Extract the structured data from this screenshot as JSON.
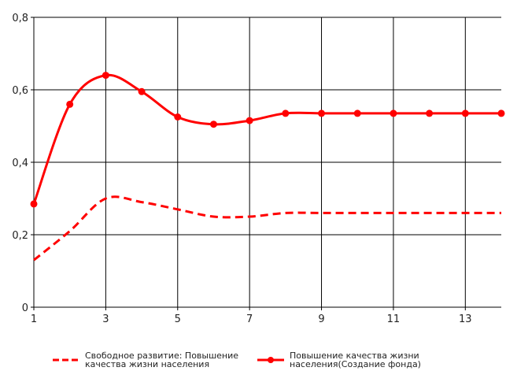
{
  "chart_data": {
    "type": "line",
    "x": [
      1,
      2,
      3,
      4,
      5,
      6,
      7,
      8,
      9,
      10,
      11,
      12,
      13,
      14
    ],
    "xticks": [
      1,
      3,
      5,
      7,
      9,
      11,
      13
    ],
    "yticks": [
      0,
      0.2,
      0.4,
      0.6,
      0.8
    ],
    "ytick_labels": [
      "0",
      "0,2",
      "0,4",
      "0,6",
      "0,8"
    ],
    "xlim": [
      1,
      14
    ],
    "ylim": [
      0,
      0.8
    ],
    "grid": true,
    "legend_position": "bottom",
    "series": [
      {
        "name": "Свободное развитие: Повышение качества жизни населения",
        "style": "dashed",
        "markers": false,
        "color": "#ff0000",
        "values": [
          0.13,
          0.21,
          0.3,
          0.29,
          0.27,
          0.25,
          0.25,
          0.26,
          0.26,
          0.26,
          0.26,
          0.26,
          0.26,
          0.26
        ]
      },
      {
        "name": "Повышение качества жизни населения(Создание фонда)",
        "style": "solid",
        "markers": true,
        "color": "#ff0000",
        "values": [
          0.285,
          0.56,
          0.64,
          0.595,
          0.525,
          0.505,
          0.515,
          0.535,
          0.535,
          0.535,
          0.535,
          0.535,
          0.535,
          0.535
        ]
      }
    ]
  }
}
